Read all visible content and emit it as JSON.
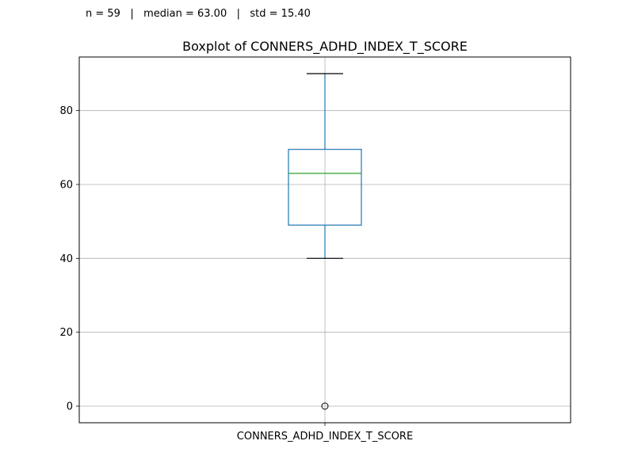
{
  "stats_text": "n = 59   |   median = 63.00   |   std = 15.40",
  "colors": {
    "box": "#1f77b4",
    "median": "#2ca02c",
    "whisker_cap": "#000000",
    "grid": "#b0b0b0",
    "flier": "#000000"
  },
  "chart_data": {
    "type": "boxplot",
    "title": "Boxplot of CONNERS_ADHD_INDEX_T_SCORE",
    "xlabel": "",
    "ylabel": "",
    "categories": [
      "CONNERS_ADHD_INDEX_T_SCORE"
    ],
    "ylim": [
      -4.5,
      94.5
    ],
    "yticks": [
      0,
      20,
      40,
      60,
      80
    ],
    "grid": true,
    "boxes": [
      {
        "category": "CONNERS_ADHD_INDEX_T_SCORE",
        "whisker_low": 40,
        "q1": 49,
        "median": 63,
        "q3": 69.5,
        "whisker_high": 90,
        "fliers": [
          0
        ]
      }
    ]
  }
}
